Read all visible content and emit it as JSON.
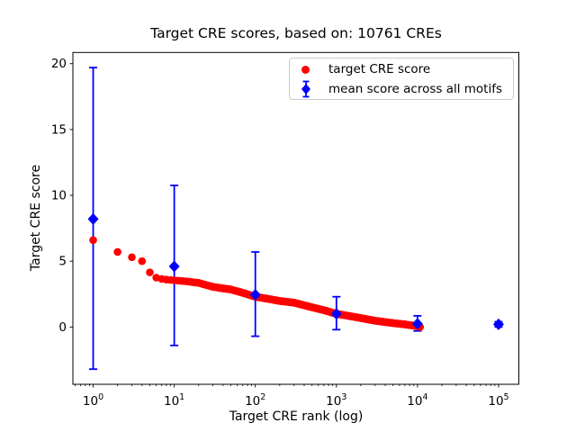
{
  "figure": {
    "background": "#ffffff"
  },
  "chart_data": {
    "type": "scatter",
    "title": "Target CRE scores, based on: 10761 CREs",
    "xlabel": "Target CRE rank (log)",
    "ylabel": "Target CRE score",
    "x_scale": "log",
    "xlim_log10": [
      -0.25,
      5.25
    ],
    "ylim": [
      -4.35,
      20.85
    ],
    "x_tick_base": "10",
    "x_major_tick_exponents": [
      0,
      1,
      2,
      3,
      4,
      5
    ],
    "y_ticks": [
      0,
      5,
      10,
      15,
      20
    ],
    "grid": false,
    "legend_position": "upper right",
    "n_cres": 10761,
    "series": [
      {
        "name": "target CRE score",
        "marker": "circle",
        "color": "#ff0000",
        "interpolation": "log-linear",
        "anchors": [
          [
            1,
            6.6
          ],
          [
            2,
            5.7
          ],
          [
            3,
            5.3
          ],
          [
            4,
            5.0
          ],
          [
            5,
            4.15
          ],
          [
            6,
            3.75
          ],
          [
            7,
            3.65
          ],
          [
            8,
            3.6
          ],
          [
            10,
            3.55
          ],
          [
            15,
            3.45
          ],
          [
            20,
            3.35
          ],
          [
            30,
            3.05
          ],
          [
            50,
            2.85
          ],
          [
            70,
            2.6
          ],
          [
            100,
            2.3
          ],
          [
            150,
            2.12
          ],
          [
            200,
            1.98
          ],
          [
            300,
            1.85
          ],
          [
            500,
            1.5
          ],
          [
            700,
            1.28
          ],
          [
            1000,
            1.0
          ],
          [
            1500,
            0.82
          ],
          [
            2000,
            0.68
          ],
          [
            3000,
            0.48
          ],
          [
            5000,
            0.3
          ],
          [
            7000,
            0.2
          ],
          [
            10000,
            0.06
          ],
          [
            10761,
            0.0
          ]
        ]
      },
      {
        "name": "mean score across all motifs",
        "marker": "diamond",
        "color": "#0000ff",
        "points": [
          {
            "rank": 1,
            "mean": 8.2,
            "lo": -3.2,
            "hi": 19.7
          },
          {
            "rank": 10,
            "mean": 4.6,
            "lo": -1.4,
            "hi": 10.75
          },
          {
            "rank": 100,
            "mean": 2.45,
            "lo": -0.7,
            "hi": 5.7
          },
          {
            "rank": 1000,
            "mean": 1.0,
            "lo": -0.2,
            "hi": 2.3
          },
          {
            "rank": 10000,
            "mean": 0.25,
            "lo": -0.3,
            "hi": 0.85
          },
          {
            "rank": 100000,
            "mean": 0.2,
            "lo": 0.0,
            "hi": 0.4
          }
        ]
      }
    ]
  }
}
